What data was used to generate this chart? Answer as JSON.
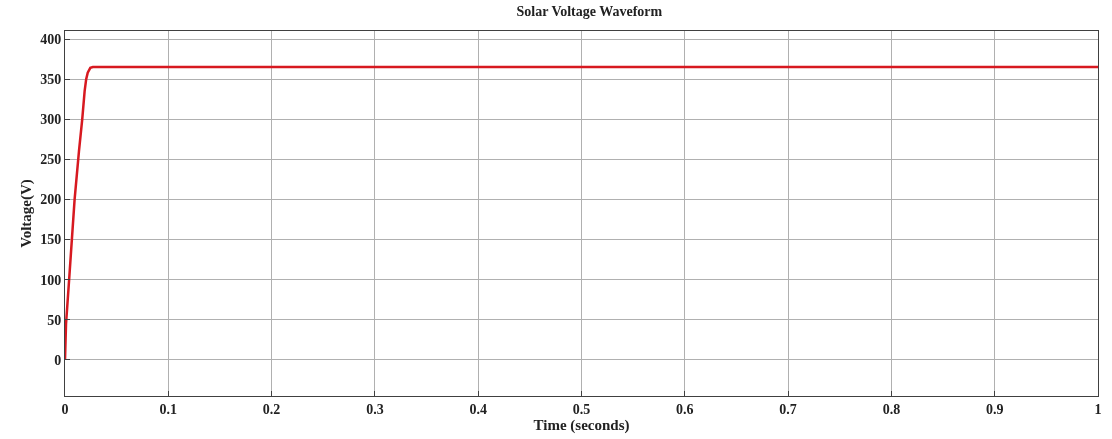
{
  "chart_data": {
    "type": "line",
    "title": "Solar Voltage Waveform",
    "xlabel": "Time (seconds)",
    "ylabel": "Voltage(V)",
    "x": [
      0,
      0.001,
      0.004,
      0.0093,
      0.0135,
      0.0167,
      0.019,
      0.0205,
      0.022,
      0.0245,
      0.027,
      0.1,
      0.5,
      1
    ],
    "series": [
      {
        "color": "#d71920",
        "values": [
          0,
          45,
          100,
          200,
          260,
          300,
          335,
          350,
          358,
          364,
          365,
          365,
          365,
          365
        ]
      }
    ],
    "xlim": [
      0,
      1
    ],
    "xticks": [
      0,
      0.1,
      0.2,
      0.3,
      0.4,
      0.5,
      0.6,
      0.7,
      0.8,
      0.9,
      1
    ],
    "ylim": [
      -45,
      410
    ],
    "yticks": [
      0,
      50,
      100,
      150,
      200,
      250,
      300,
      350,
      400
    ],
    "grid": true,
    "marker": "none",
    "line_style": "solid"
  }
}
